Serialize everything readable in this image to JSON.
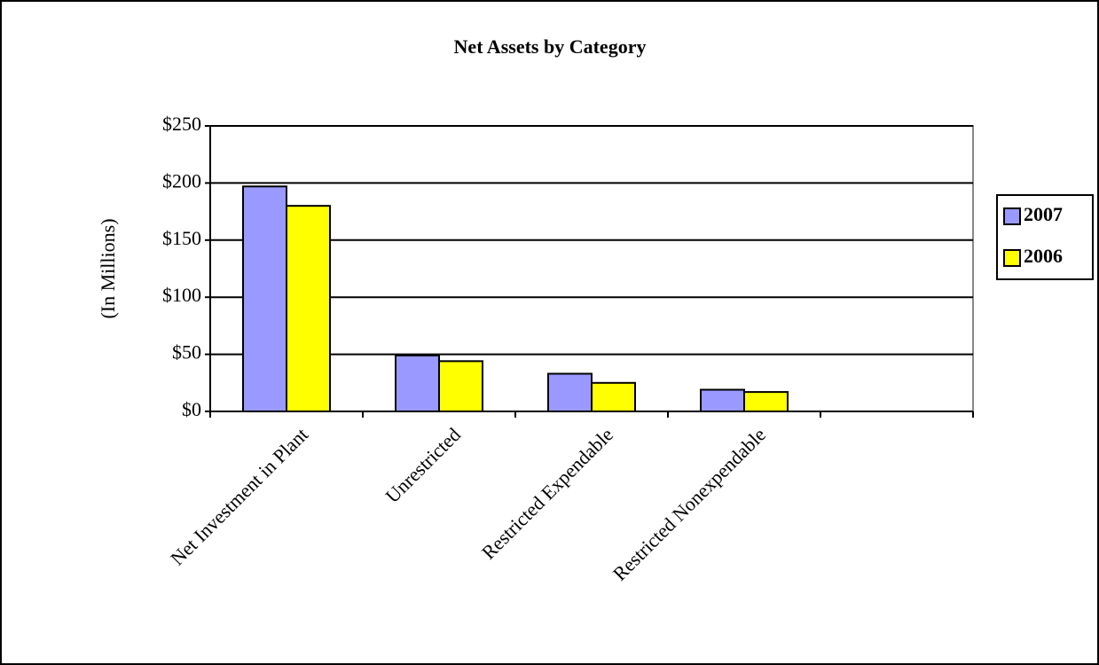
{
  "chart_data": {
    "type": "bar",
    "title": "Net Assets by Category",
    "y_label": "(In Millions)",
    "categories": [
      "Net Investment in Plant",
      "Unrestricted",
      "Restricted Expendable",
      "Restricted Nonexpendable",
      null
    ],
    "series": [
      {
        "name": "2007",
        "color": "#9999ff",
        "values": [
          197,
          49,
          33,
          19,
          null
        ]
      },
      {
        "name": "2006",
        "color": "#ffff00",
        "values": [
          180,
          44,
          25,
          17,
          null
        ]
      }
    ],
    "ylim": [
      0,
      250
    ],
    "yticks": [
      {
        "value": 0,
        "label": "$0"
      },
      {
        "value": 50,
        "label": "$50"
      },
      {
        "value": 100,
        "label": "$100"
      },
      {
        "value": 150,
        "label": "$150"
      },
      {
        "value": 200,
        "label": "$200"
      },
      {
        "value": 250,
        "label": "$250"
      }
    ],
    "grid": true,
    "legend": "right"
  }
}
